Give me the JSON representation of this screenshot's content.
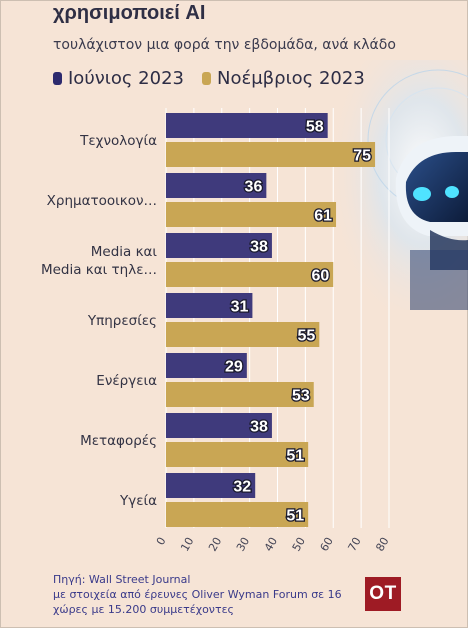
{
  "header": {
    "title": "χρησιμοποιεί AI",
    "subtitle": "τουλάχιστον μια φορά την εβδομάδα, ανά κλάδο"
  },
  "footer": {
    "source_line1": "Πηγή: Wall Street Journal",
    "source_line2": "με στοιχεία από έρευνες Oliver Wyman Forum σε 16",
    "source_line3": "χώρες με 15.200 συμμετέχοντες",
    "logo_text": "OT"
  },
  "colors": {
    "series_june": "#3f3a7c",
    "series_nov": "#c9a654",
    "background": "#f6e4d6",
    "logo": "#9e1b24"
  },
  "chart_data": {
    "type": "bar",
    "orientation": "horizontal",
    "categories": [
      [
        "Τεχνολογία"
      ],
      [
        "Χρηματοοικον…"
      ],
      [
        "Media και",
        "Media και τηλε…"
      ],
      [
        "Υπηρεσίες"
      ],
      [
        "Ενέργεια"
      ],
      [
        "Μεταφορές"
      ],
      [
        "Υγεία"
      ]
    ],
    "series": [
      {
        "name": "Ιούνιος 2023",
        "values": [
          58,
          36,
          38,
          31,
          29,
          38,
          32
        ]
      },
      {
        "name": "Νοέμβριος 2023",
        "values": [
          75,
          61,
          60,
          55,
          53,
          51,
          51
        ]
      }
    ],
    "xlim": [
      0,
      80
    ],
    "xticks": [
      "0",
      "10",
      "20",
      "30",
      "40",
      "50",
      "60",
      "70",
      "80"
    ],
    "grid": true,
    "legend": "top-left"
  }
}
